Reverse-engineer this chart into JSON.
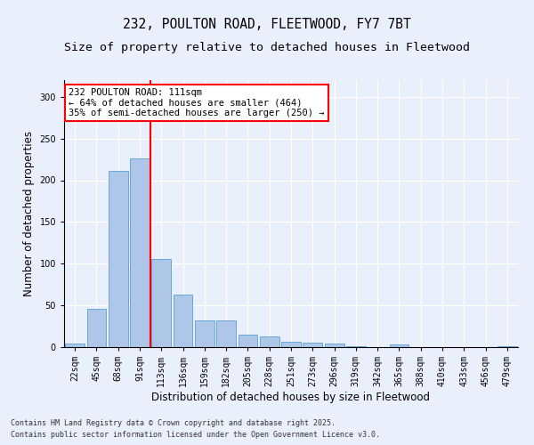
{
  "title_line1": "232, POULTON ROAD, FLEETWOOD, FY7 7BT",
  "title_line2": "Size of property relative to detached houses in Fleetwood",
  "xlabel": "Distribution of detached houses by size in Fleetwood",
  "ylabel": "Number of detached properties",
  "categories": [
    "22sqm",
    "45sqm",
    "68sqm",
    "91sqm",
    "113sqm",
    "136sqm",
    "159sqm",
    "182sqm",
    "205sqm",
    "228sqm",
    "251sqm",
    "273sqm",
    "296sqm",
    "319sqm",
    "342sqm",
    "365sqm",
    "388sqm",
    "410sqm",
    "433sqm",
    "456sqm",
    "479sqm"
  ],
  "values": [
    4,
    46,
    211,
    226,
    106,
    63,
    32,
    32,
    15,
    13,
    6,
    5,
    4,
    1,
    0,
    3,
    0,
    0,
    0,
    0,
    1
  ],
  "bar_color": "#aec6e8",
  "bar_edge_color": "#5a9fd4",
  "vline_color": "red",
  "vline_pos": 3.5,
  "annotation_text": "232 POULTON ROAD: 111sqm\n← 64% of detached houses are smaller (464)\n35% of semi-detached houses are larger (250) →",
  "annotation_box_color": "white",
  "annotation_box_edge": "red",
  "ylim": [
    0,
    320
  ],
  "yticks": [
    0,
    50,
    100,
    150,
    200,
    250,
    300
  ],
  "background_color": "#eaf0fb",
  "plot_bg_color": "#eaf0fb",
  "footer_line1": "Contains HM Land Registry data © Crown copyright and database right 2025.",
  "footer_line2": "Contains public sector information licensed under the Open Government Licence v3.0.",
  "title_fontsize": 10.5,
  "subtitle_fontsize": 9.5,
  "tick_fontsize": 7,
  "label_fontsize": 8.5,
  "annotation_fontsize": 7.5,
  "footer_fontsize": 6
}
